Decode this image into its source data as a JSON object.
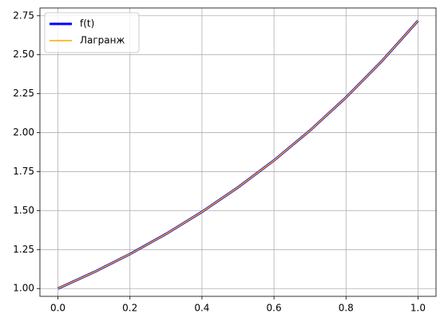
{
  "chart_data": {
    "type": "line",
    "x": [
      0,
      0.1,
      0.2,
      0.3,
      0.4,
      0.5,
      0.6,
      0.7,
      0.8,
      0.9,
      1
    ],
    "series": [
      {
        "name": "f(t)",
        "color": "#0000ff",
        "values": [
          1,
          1.105,
          1.221,
          1.35,
          1.492,
          1.649,
          1.822,
          2.014,
          2.226,
          2.46,
          2.718
        ]
      },
      {
        "name": "Лагранж",
        "color": "#ffa500",
        "values": [
          1,
          1.105,
          1.221,
          1.35,
          1.492,
          1.649,
          1.822,
          2.014,
          2.226,
          2.46,
          2.718
        ]
      }
    ],
    "xlim": [
      -0.05,
      1.05
    ],
    "ylim": [
      0.95,
      2.8
    ],
    "xticks": [
      {
        "value": 0,
        "label": "0.0"
      },
      {
        "value": 0.2,
        "label": "0.2"
      },
      {
        "value": 0.4,
        "label": "0.4"
      },
      {
        "value": 0.6,
        "label": "0.6"
      },
      {
        "value": 0.8,
        "label": "0.8"
      },
      {
        "value": 1,
        "label": "1.0"
      }
    ],
    "yticks": [
      {
        "value": 1,
        "label": "1.00"
      },
      {
        "value": 1.25,
        "label": "1.25"
      },
      {
        "value": 1.5,
        "label": "1.50"
      },
      {
        "value": 1.75,
        "label": "1.75"
      },
      {
        "value": 2,
        "label": "2.00"
      },
      {
        "value": 2.25,
        "label": "2.25"
      },
      {
        "value": 2.5,
        "label": "2.50"
      },
      {
        "value": 2.75,
        "label": "2.75"
      }
    ],
    "grid": true,
    "legend": "upper-left"
  }
}
